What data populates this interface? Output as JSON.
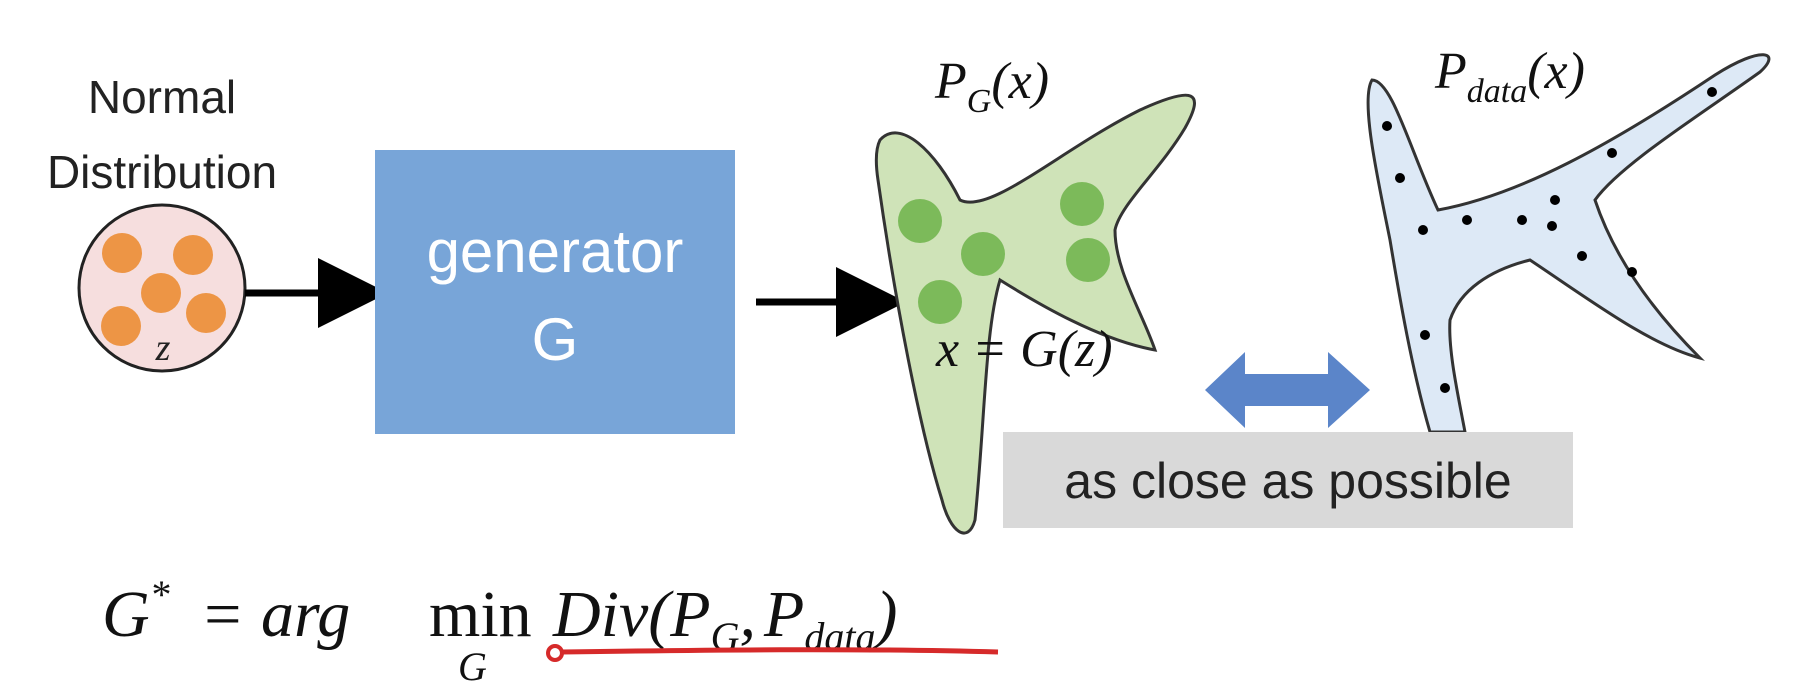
{
  "source": {
    "label_line1": "Normal",
    "label_line2": "Distribution",
    "variable": "z",
    "fill_color": "#f6dede",
    "dot_color": "#ed9545"
  },
  "generator": {
    "line1": "generator",
    "line2": "G",
    "fill_color": "#78a5d8"
  },
  "pg": {
    "label_base": "P",
    "label_sub": "G",
    "label_arg": "(x)",
    "equation": "x = G(z)",
    "fill_color": "#cfe3b8",
    "dot_color": "#7cba5a"
  },
  "pdata": {
    "label_base": "P",
    "label_sub": "data",
    "label_arg": "(x)",
    "fill_color": "#dde9f6"
  },
  "comparison": {
    "caption": "as close as possible",
    "caption_bg": "#d9d9d9",
    "arrow_color": "#5b85c9"
  },
  "formula": {
    "lhs": "G",
    "star": "*",
    "eq_text": "= arg",
    "min_text": "min",
    "min_sub": "G",
    "div_text": "Div(",
    "p1_base": "P",
    "p1_sub": "G",
    "comma": ",",
    "p2_base": "P",
    "p2_sub": "data",
    "close": ")",
    "underline_color": "#d62a2a"
  }
}
